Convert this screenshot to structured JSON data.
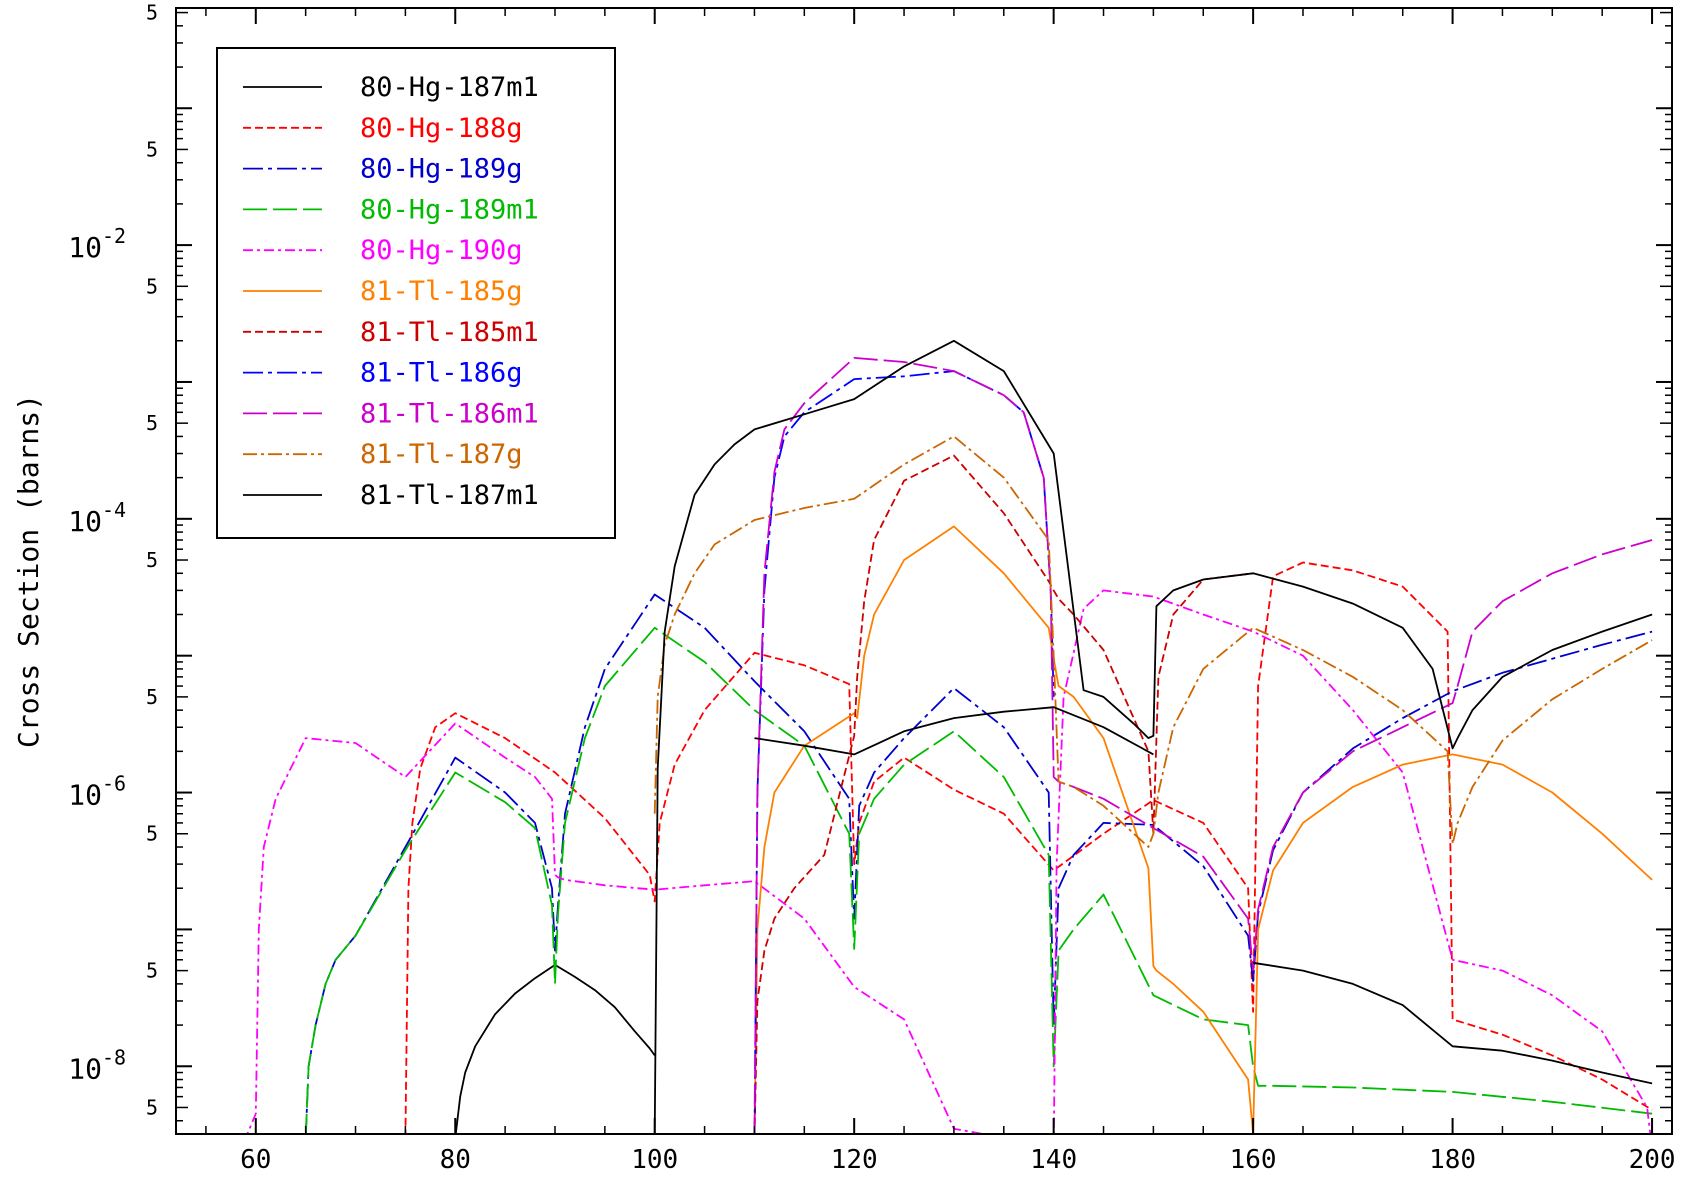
{
  "chart_data": {
    "type": "line",
    "title": "",
    "xlabel": "",
    "ylabel": "Cross Section (barns)",
    "xlim": [
      52,
      202
    ],
    "ylog": true,
    "ylim": [
      3.2e-09,
      0.54
    ],
    "grid": false,
    "legend_position": "top-left",
    "x_ticks": [
      60,
      80,
      100,
      120,
      140,
      160,
      180,
      200
    ],
    "x_tick_labels": [
      "60",
      "80",
      "100",
      "120",
      "140",
      "160",
      "180",
      "200"
    ],
    "y_decades": [
      {
        "value": 1e-08,
        "base": "10",
        "exp": "-8"
      },
      {
        "value": 1e-06,
        "base": "10",
        "exp": "-6"
      },
      {
        "value": 0.0001,
        "base": "10",
        "exp": "-4"
      },
      {
        "value": 0.01,
        "base": "10",
        "exp": "-2"
      }
    ],
    "y_minor_labels": [
      {
        "value": 5e-09,
        "label": "5"
      },
      {
        "value": 5e-08,
        "label": "5"
      },
      {
        "value": 5e-07,
        "label": "5"
      },
      {
        "value": 5e-06,
        "label": "5"
      },
      {
        "value": 5e-05,
        "label": "5"
      },
      {
        "value": 0.0005,
        "label": "5"
      },
      {
        "value": 0.005,
        "label": "5"
      },
      {
        "value": 0.05,
        "label": "5"
      },
      {
        "value": 0.5,
        "label": "5"
      }
    ],
    "series": [
      {
        "name": "80-Hg-187m1",
        "color": "#000000",
        "dash": "none",
        "x": [
          80,
          80.5,
          81,
          82,
          84,
          86,
          88,
          90,
          92,
          94,
          96,
          98,
          99.5,
          100
        ],
        "y": [
          3e-09,
          6e-09,
          9e-09,
          1.4e-08,
          2.4e-08,
          3.4e-08,
          4.4e-08,
          5.5e-08,
          4.5e-08,
          3.6e-08,
          2.7e-08,
          1.8e-08,
          1.35e-08,
          1.2e-08
        ]
      },
      {
        "name": "80-Hg-188g",
        "color": "#ff0000",
        "dash": "8,4",
        "x": [
          75,
          75.3,
          75.7,
          76.5,
          78,
          80,
          85,
          90,
          95,
          99.5,
          100,
          100.5,
          102,
          105,
          110,
          115,
          119.5,
          120,
          120.5,
          122,
          125,
          130,
          135,
          140,
          145,
          150,
          155,
          159.5,
          160,
          160.5,
          162,
          165,
          170,
          175,
          179.5,
          180,
          185,
          190,
          195,
          200
        ],
        "y": [
          3e-09,
          2e-07,
          6e-07,
          1.5e-06,
          3e-06,
          3.8e-06,
          2.5e-06,
          1.4e-06,
          6.5e-07,
          2.5e-07,
          1.6e-07,
          6e-07,
          1.6e-06,
          4e-06,
          1.05e-05,
          8.5e-06,
          6.2e-06,
          3e-07,
          6e-07,
          1.2e-06,
          1.8e-06,
          1.05e-06,
          7e-07,
          2.7e-07,
          5e-07,
          8.8e-07,
          6e-07,
          2e-07,
          2.5e-08,
          6e-06,
          3.8e-05,
          4.8e-05,
          4.2e-05,
          3.2e-05,
          1.5e-05,
          2.2e-08,
          1.7e-08,
          1.2e-08,
          8e-09,
          4.8e-09
        ]
      },
      {
        "name": "80-Hg-189g",
        "color": "#0000cc",
        "dash": "20,5,4,5",
        "x": [
          65,
          65.3,
          66,
          67,
          68,
          70,
          75,
          80,
          85,
          88,
          89.7,
          90,
          90.3,
          91,
          93,
          95,
          100,
          105,
          110,
          115,
          119.5,
          120,
          120.5,
          122,
          125,
          130,
          135,
          139.5,
          140,
          140.5,
          142,
          145,
          150,
          155,
          159.5,
          160,
          160.5,
          162,
          165,
          170,
          175,
          180,
          185,
          190,
          195,
          200
        ],
        "y": [
          3e-09,
          1e-08,
          2e-08,
          4e-08,
          6e-08,
          9e-08,
          4e-07,
          1.8e-06,
          1e-06,
          6e-07,
          2e-07,
          7e-08,
          1.5e-07,
          7e-07,
          3e-06,
          8e-06,
          2.8e-05,
          1.6e-05,
          6.5e-06,
          2.8e-06,
          9e-07,
          1.2e-07,
          8e-07,
          1.4e-06,
          2.5e-06,
          5.8e-06,
          3e-06,
          1e-06,
          2e-08,
          2e-07,
          3.5e-07,
          6e-07,
          5.8e-07,
          2.9e-07,
          9e-08,
          4.2e-08,
          1.3e-07,
          3.8e-07,
          1e-06,
          2.1e-06,
          3.5e-06,
          5.5e-06,
          7.5e-06,
          9.5e-06,
          1.2e-05,
          1.5e-05
        ]
      },
      {
        "name": "80-Hg-189m1",
        "color": "#00bb00",
        "dash": "24,6",
        "x": [
          65,
          65.3,
          66,
          67,
          68,
          70,
          75,
          80,
          85,
          88,
          89.7,
          90,
          90.3,
          91,
          93,
          95,
          100,
          105,
          110,
          115,
          119.5,
          120,
          120.5,
          122,
          125,
          130,
          135,
          139.5,
          140,
          140.5,
          142,
          145,
          150,
          155,
          159.5,
          160,
          160.5,
          162,
          170,
          180,
          190,
          200
        ],
        "y": [
          3e-09,
          1e-08,
          2e-08,
          4e-08,
          6e-08,
          9e-08,
          3.8e-07,
          1.4e-06,
          8.5e-07,
          5.5e-07,
          1.5e-07,
          4e-08,
          1.3e-07,
          6e-07,
          2.5e-06,
          6e-06,
          1.6e-05,
          9e-06,
          4e-06,
          2.2e-06,
          5e-07,
          7.2e-08,
          5e-07,
          9e-07,
          1.6e-06,
          2.8e-06,
          1.3e-06,
          3.5e-07,
          1e-08,
          7e-08,
          1e-07,
          1.8e-07,
          3.3e-08,
          2.2e-08,
          2e-08,
          1e-08,
          7.2e-09,
          7.2e-09,
          7e-09,
          6.5e-09,
          5.5e-09,
          4.5e-09
        ]
      },
      {
        "name": "80-Hg-190g",
        "color": "#ff00ff",
        "dash": "10,4,3,4",
        "x": [
          57,
          58,
          60,
          60.3,
          60.8,
          62,
          65,
          70,
          75,
          80,
          85,
          88,
          89.7,
          90,
          90.3,
          91,
          93,
          95,
          100,
          105,
          110,
          115,
          120,
          125,
          130,
          135,
          140,
          140.3,
          141,
          143,
          145,
          150,
          155,
          160,
          165,
          170,
          175,
          180,
          185,
          190,
          195,
          199.5,
          200
        ],
        "y": [
          1.5e-09,
          2e-09,
          4.5e-09,
          1e-07,
          4e-07,
          9e-07,
          2.5e-06,
          2.3e-06,
          1.3e-06,
          3.2e-06,
          1.8e-06,
          1.3e-06,
          9e-07,
          2.5e-07,
          2.4e-07,
          2.3e-07,
          2.2e-07,
          2.1e-07,
          1.95e-07,
          2.1e-07,
          2.25e-07,
          1.2e-07,
          3.8e-08,
          2.2e-08,
          3.5e-09,
          3e-09,
          2.5e-09,
          3e-07,
          5e-06,
          2.2e-05,
          3e-05,
          2.7e-05,
          2e-05,
          1.5e-05,
          1e-05,
          4e-06,
          1.4e-06,
          6e-08,
          5e-08,
          3.3e-08,
          1.8e-08,
          5e-09,
          2.5e-09
        ]
      },
      {
        "name": "81-Tl-185g",
        "color": "#ff8000",
        "dash": "none",
        "x": [
          110,
          110.3,
          111,
          112,
          115,
          120,
          120.3,
          121,
          122,
          125,
          130,
          135,
          139.5,
          140,
          140.5,
          142,
          145,
          149.5,
          150,
          150.3,
          152,
          155,
          159.5,
          160,
          160.5,
          162,
          165,
          170,
          175,
          180,
          185,
          190,
          195,
          200
        ],
        "y": [
          3e-09,
          1e-07,
          4e-07,
          1e-06,
          2.2e-06,
          3.8e-06,
          3.5e-06,
          1e-05,
          2e-05,
          5e-05,
          8.8e-05,
          4e-05,
          1.6e-05,
          9.5e-06,
          6e-06,
          5e-06,
          2.5e-06,
          2.8e-07,
          5.4e-08,
          5e-08,
          4e-08,
          2.5e-08,
          8e-09,
          3.2e-09,
          1e-07,
          2.7e-07,
          6e-07,
          1.1e-06,
          1.6e-06,
          1.9e-06,
          1.6e-06,
          1e-06,
          5e-07,
          2.3e-07
        ]
      },
      {
        "name": "81-Tl-185m1",
        "color": "#cc0000",
        "dash": "8,4",
        "x": [
          110,
          110.3,
          111,
          112,
          114,
          117,
          120,
          120.3,
          121,
          122,
          125,
          130,
          135,
          139.5,
          140,
          140.5,
          142,
          145,
          149.5,
          150,
          150.5,
          152,
          155,
          160
        ],
        "y": [
          3e-09,
          3e-08,
          7e-08,
          1.2e-07,
          2e-07,
          3.5e-07,
          2.6e-06,
          7e-06,
          2.5e-05,
          7e-05,
          0.00019,
          0.00029,
          0.00011,
          3.5e-05,
          3e-05,
          2.6e-05,
          2e-05,
          1.1e-05,
          2e-06,
          5e-07,
          7e-06,
          2e-05,
          3.6e-05,
          4e-05
        ]
      },
      {
        "name": "81-Tl-186g",
        "color": "#0000ff",
        "dash": "20,5,4,5",
        "x": [
          110,
          110.3,
          111,
          112,
          113,
          115,
          120,
          125,
          130,
          135,
          137,
          139,
          139.7,
          140
        ],
        "y": [
          3e-09,
          1e-06,
          3e-05,
          0.0002,
          0.0004,
          0.0006,
          0.00105,
          0.0011,
          0.0012,
          0.0008,
          0.0006,
          0.0002,
          3e-05,
          5e-06
        ]
      },
      {
        "name": "81-Tl-186m1",
        "color": "#cc00cc",
        "dash": "24,6",
        "x": [
          110,
          110.3,
          111,
          112,
          113,
          115,
          120,
          125,
          130,
          135,
          137,
          139,
          139.7,
          140,
          140.5,
          142,
          145,
          150,
          155,
          159.5,
          160,
          160.5,
          162,
          165,
          170,
          175,
          180,
          180.5,
          182,
          185,
          190,
          195,
          200
        ],
        "y": [
          3e-09,
          1e-06,
          4e-05,
          0.00022,
          0.00045,
          0.0007,
          0.0015,
          0.0014,
          0.0012,
          0.0008,
          0.0006,
          0.0002,
          3e-05,
          1.3e-06,
          1.2e-06,
          1.1e-06,
          9e-07,
          5.5e-07,
          3.4e-07,
          1.2e-07,
          5e-08,
          1.4e-07,
          4e-07,
          1e-06,
          2e-06,
          3e-06,
          4.5e-06,
          6e-06,
          1.5e-05,
          2.5e-05,
          4e-05,
          5.5e-05,
          7e-05
        ]
      },
      {
        "name": "81-Tl-187g",
        "color": "#cc6600",
        "dash": "14,4,3,4",
        "x": [
          100,
          100.3,
          101,
          102,
          104,
          106,
          110,
          115,
          120,
          125,
          130,
          135,
          139.5,
          140,
          140.5,
          142,
          145,
          149.5,
          150,
          150.5,
          152,
          155,
          160,
          165,
          170,
          175,
          179.5,
          180,
          180.5,
          182,
          185,
          190,
          195,
          200
        ],
        "y": [
          7e-07,
          5e-06,
          1.2e-05,
          2e-05,
          4e-05,
          6.5e-05,
          9.8e-05,
          0.00012,
          0.00014,
          0.00025,
          0.0004,
          0.0002,
          7e-05,
          1e-05,
          1.2e-06,
          1.1e-06,
          8e-07,
          4e-07,
          5e-07,
          1e-06,
          3e-06,
          8e-06,
          1.6e-05,
          1.1e-05,
          7e-06,
          4e-06,
          2e-06,
          4.2e-07,
          6e-07,
          1.1e-06,
          2.4e-06,
          4.8e-06,
          8e-06,
          1.3e-05
        ]
      },
      {
        "name": "81-Tl-187m1",
        "color": "#000000",
        "dash": "none",
        "x": [
          100,
          100.3,
          101,
          102,
          104,
          106,
          108,
          110,
          115,
          120,
          125,
          130,
          135,
          140,
          143,
          145,
          148,
          149.5,
          150,
          150.3,
          152,
          155,
          160,
          165,
          170,
          175,
          178,
          180,
          180.5,
          182,
          185,
          190,
          195,
          200
        ],
        "y": [
          3e-09,
          1.5e-06,
          1.5e-05,
          4.5e-05,
          0.00015,
          0.00025,
          0.00035,
          0.00045,
          0.00058,
          0.00075,
          0.0013,
          0.002,
          0.0012,
          0.0003,
          5.6e-06,
          5e-06,
          3.2e-06,
          2.5e-06,
          2.6e-06,
          2.3e-05,
          3e-05,
          3.6e-05,
          4e-05,
          3.2e-05,
          2.4e-05,
          1.6e-05,
          8e-06,
          2.1e-06,
          2.5e-06,
          4e-06,
          7e-06,
          1.1e-05,
          1.5e-05,
          2e-05
        ]
      },
      {
        "name": "",
        "color": "#000000",
        "dash": "none",
        "x": [
          110,
          115,
          120,
          125,
          130,
          135,
          140,
          145,
          150
        ],
        "y": [
          2.5e-06,
          2.2e-06,
          1.9e-06,
          2.8e-06,
          3.5e-06,
          3.9e-06,
          4.2e-06,
          3e-06,
          1.9e-06
        ]
      },
      {
        "name": "",
        "color": "#000000",
        "dash": "none",
        "x": [
          160,
          165,
          170,
          175,
          180,
          185,
          190,
          195,
          200
        ],
        "y": [
          5.7e-08,
          5e-08,
          4e-08,
          2.8e-08,
          1.4e-08,
          1.3e-08,
          1.1e-08,
          9e-09,
          7.5e-09
        ]
      }
    ]
  }
}
